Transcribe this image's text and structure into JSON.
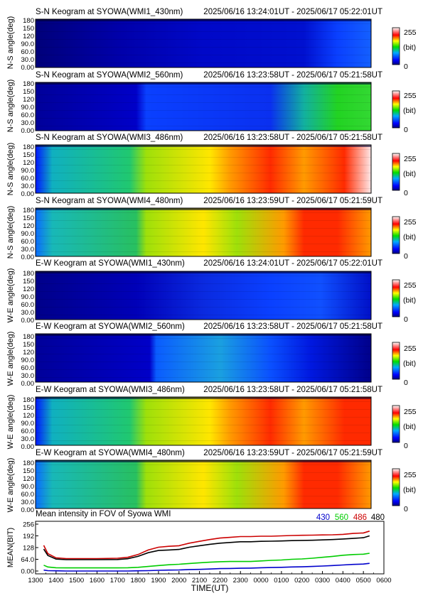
{
  "chart_data": [
    {
      "type": "heatmap",
      "title": "S-N Keogram at SYOWA(WMI1_430nm)",
      "time_range": "2025/06/16 13:24:01UT - 2025/06/17 05:22:01UT",
      "ylabel": "N-S angle(deg)",
      "yticks": [
        "180",
        "150",
        "120",
        "90.0",
        "60.0",
        "30.0",
        "0.00"
      ],
      "ylim": [
        0,
        180
      ],
      "colorbar": {
        "max": "255",
        "unit": "(bit)",
        "min": "0"
      },
      "band": "430",
      "axis": "NS"
    },
    {
      "type": "heatmap",
      "title": "S-N Keogram at SYOWA(WMI2_560nm)",
      "time_range": "2025/06/16 13:23:58UT - 2025/06/17 05:21:58UT",
      "ylabel": "N-S angle(deg)",
      "yticks": [
        "180",
        "150",
        "120",
        "90.0",
        "60.0",
        "30.0",
        "0.00"
      ],
      "ylim": [
        0,
        180
      ],
      "colorbar": {
        "max": "255",
        "unit": "(bit)",
        "min": "0"
      },
      "band": "560",
      "axis": "NS"
    },
    {
      "type": "heatmap",
      "title": "S-N Keogram at SYOWA(WMI3_486nm)",
      "time_range": "2025/06/16 13:23:58UT - 2025/06/17 05:21:58UT",
      "ylabel": "N-S angle(deg)",
      "yticks": [
        "180",
        "150",
        "120",
        "90.0",
        "60.0",
        "30.0",
        "0.00"
      ],
      "ylim": [
        0,
        180
      ],
      "colorbar": {
        "max": "255",
        "unit": "(bit)",
        "min": "0"
      },
      "band": "486",
      "axis": "NS"
    },
    {
      "type": "heatmap",
      "title": "S-N Keogram at SYOWA(WMI4_480nm)",
      "time_range": "2025/06/16 13:23:59UT - 2025/06/17 05:21:59UT",
      "ylabel": "N-S angle(deg)",
      "yticks": [
        "180",
        "150",
        "120",
        "90.0",
        "60.0",
        "30.0",
        "0.00"
      ],
      "ylim": [
        0,
        180
      ],
      "colorbar": {
        "max": "255",
        "unit": "(bit)",
        "min": "0"
      },
      "band": "480",
      "axis": "NS"
    },
    {
      "type": "heatmap",
      "title": "E-W Keogram at SYOWA(WMI1_430nm)",
      "time_range": "2025/06/16 13:24:01UT - 2025/06/17 05:22:01UT",
      "ylabel": "W-E angle(deg)",
      "yticks": [
        "180",
        "150",
        "120",
        "90.0",
        "60.0",
        "30.0",
        "0.00"
      ],
      "ylim": [
        0,
        180
      ],
      "colorbar": {
        "max": "255",
        "unit": "(bit)",
        "min": "0"
      },
      "band": "430",
      "axis": "EW"
    },
    {
      "type": "heatmap",
      "title": "E-W Keogram at SYOWA(WMI2_560nm)",
      "time_range": "2025/06/16 13:23:58UT - 2025/06/17 05:21:58UT",
      "ylabel": "W-E angle(deg)",
      "yticks": [
        "180",
        "150",
        "120",
        "90.0",
        "60.0",
        "30.0",
        "0.00"
      ],
      "ylim": [
        0,
        180
      ],
      "colorbar": {
        "max": "255",
        "unit": "(bit)",
        "min": "0"
      },
      "band": "560",
      "axis": "EW"
    },
    {
      "type": "heatmap",
      "title": "E-W Keogram at SYOWA(WMI3_486nm)",
      "time_range": "2025/06/16 13:23:58UT - 2025/06/17 05:21:58UT",
      "ylabel": "W-E angle(deg)",
      "yticks": [
        "180",
        "150",
        "120",
        "90.0",
        "60.0",
        "30.0",
        "0.00"
      ],
      "ylim": [
        0,
        180
      ],
      "colorbar": {
        "max": "255",
        "unit": "(bit)",
        "min": "0"
      },
      "band": "486",
      "axis": "EW"
    },
    {
      "type": "heatmap",
      "title": "E-W Keogram at SYOWA(WMI4_480nm)",
      "time_range": "2025/06/16 13:23:59UT - 2025/06/17 05:21:59UT",
      "ylabel": "W-E angle(deg)",
      "yticks": [
        "180",
        "150",
        "120",
        "90.0",
        "60.0",
        "30.0",
        "0.00"
      ],
      "ylim": [
        0,
        180
      ],
      "colorbar": {
        "max": "255",
        "unit": "(bit)",
        "min": "0"
      },
      "band": "480",
      "axis": "EW"
    },
    {
      "type": "line",
      "title": "Mean intensity in FOV of Syowa WMI",
      "xlabel": "TIME(UT)",
      "ylabel": "MEAN(BIT)",
      "xticks": [
        "1300",
        "1400",
        "1500",
        "1600",
        "1700",
        "1800",
        "1900",
        "2000",
        "2100",
        "2200",
        "2300",
        "0000",
        "0100",
        "0200",
        "0300",
        "0400",
        "0500",
        "0600"
      ],
      "xlim": [
        13,
        30
      ],
      "yticks": [
        "256",
        "192",
        "128",
        "64.0",
        "0.00"
      ],
      "ylim": [
        0,
        256
      ],
      "x": [
        13.4,
        13.6,
        14.0,
        14.5,
        15.0,
        16.0,
        17.0,
        17.5,
        18.0,
        18.5,
        19.0,
        19.5,
        20.0,
        20.5,
        21.0,
        21.5,
        22.0,
        22.5,
        23.0,
        23.5,
        24.0,
        24.5,
        25.0,
        25.5,
        26.0,
        26.5,
        27.0,
        27.5,
        28.0,
        28.5,
        29.0,
        29.3
      ],
      "series": [
        {
          "name": "430",
          "color": "#0000cc",
          "values": [
            5,
            2,
            1,
            0,
            0,
            0,
            0,
            0,
            1,
            2,
            4,
            5,
            6,
            8,
            9,
            11,
            13,
            14,
            15,
            16,
            18,
            19,
            20,
            22,
            23,
            25,
            27,
            30,
            33,
            36,
            38,
            42
          ]
        },
        {
          "name": "560",
          "color": "#00cc00",
          "values": [
            32,
            22,
            18,
            17,
            17,
            17,
            17,
            18,
            20,
            25,
            30,
            34,
            37,
            41,
            45,
            48,
            51,
            52,
            52,
            52,
            55,
            58,
            60,
            64,
            66,
            70,
            75,
            80,
            86,
            90,
            92,
            97
          ]
        },
        {
          "name": "486",
          "color": "#cc0000",
          "values": [
            140,
            95,
            72,
            68,
            68,
            68,
            70,
            75,
            90,
            115,
            130,
            135,
            138,
            152,
            162,
            172,
            180,
            184,
            188,
            188,
            190,
            190,
            192,
            194,
            195,
            196,
            197,
            198,
            200,
            205,
            208,
            218
          ]
        },
        {
          "name": "480",
          "color": "#000000",
          "values": [
            120,
            85,
            65,
            62,
            62,
            62,
            63,
            67,
            80,
            100,
            112,
            115,
            118,
            130,
            138,
            146,
            152,
            156,
            160,
            160,
            162,
            163,
            164,
            166,
            167,
            168,
            170,
            172,
            175,
            178,
            182,
            192
          ]
        }
      ]
    }
  ]
}
